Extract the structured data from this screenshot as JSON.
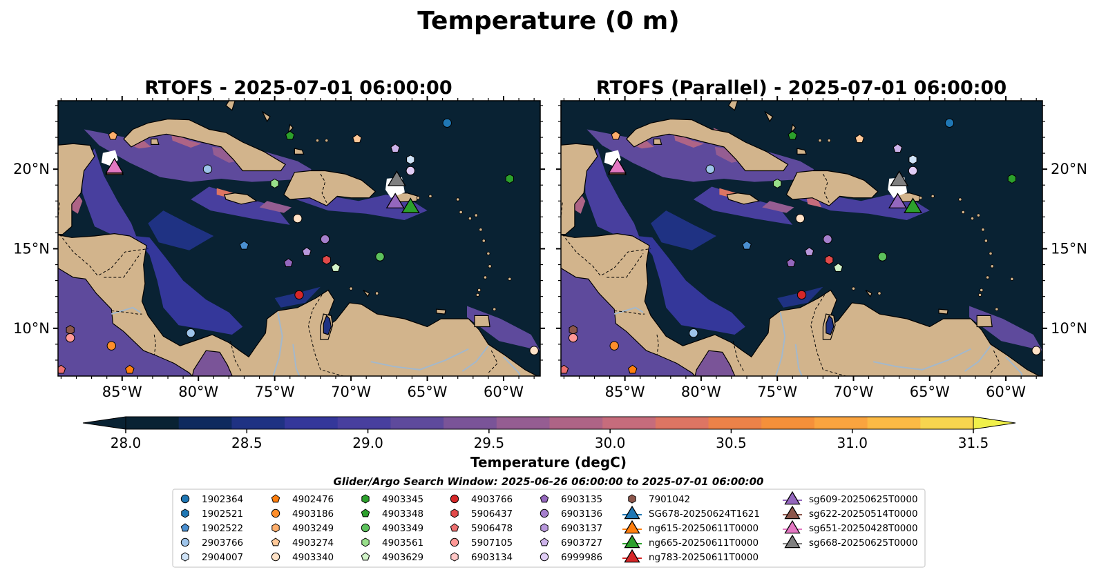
{
  "figure": {
    "suptitle": "Temperature (0 m)",
    "colorbar_label": "Temperature (degC)",
    "search_window": "Glider/Argo Search Window: 2025-06-26 06:00:00 to 2025-07-01 06:00:00"
  },
  "chart_data": [
    {
      "type": "heatmap",
      "title": "RTOFS - 2025-07-01 06:00:00",
      "x_ticks": [
        "85°W",
        "80°W",
        "75°W",
        "70°W",
        "65°W",
        "60°W"
      ],
      "y_ticks": [
        "20°N",
        "15°N",
        "10°N"
      ],
      "y_tick_side": "left"
    },
    {
      "type": "heatmap",
      "title": "RTOFS (Parallel) - 2025-07-01 06:00:00",
      "x_ticks": [
        "85°W",
        "80°W",
        "75°W",
        "70°W",
        "65°W",
        "60°W"
      ],
      "y_ticks": [
        "20°N",
        "15°N",
        "10°N"
      ],
      "y_tick_side": "right"
    }
  ],
  "colorbar": {
    "range": [
      28.0,
      31.5
    ],
    "ticks": [
      "28.0",
      "28.5",
      "29.0",
      "29.5",
      "30.0",
      "30.5",
      "31.0",
      "31.5"
    ],
    "extend": "both",
    "colors": [
      "#092233",
      "#0f2a5e",
      "#1f3283",
      "#34379a",
      "#483f9e",
      "#5e4a9c",
      "#7a5498",
      "#955d92",
      "#ae6486",
      "#c66c7c",
      "#dd7563",
      "#ec8249",
      "#f5903a",
      "#faa43f",
      "#fcba45",
      "#f7d54f"
    ]
  },
  "legend": {
    "columns": [
      [
        {
          "label": "1902364",
          "marker": "circle",
          "color": "#1f77b4"
        },
        {
          "label": "1902521",
          "marker": "hexagon",
          "color": "#1f77b4"
        },
        {
          "label": "1902522",
          "marker": "pentagon",
          "color": "#4a8fd0"
        },
        {
          "label": "2903766",
          "marker": "circle",
          "color": "#9ec4ea"
        },
        {
          "label": "2904007",
          "marker": "hexagon",
          "color": "#cfe3f7"
        }
      ],
      [
        {
          "label": "4902476",
          "marker": "pentagon",
          "color": "#ff7f0e"
        },
        {
          "label": "4903186",
          "marker": "circle",
          "color": "#ff8e2a"
        },
        {
          "label": "4903249",
          "marker": "hexagon",
          "color": "#ffae6b"
        },
        {
          "label": "4903274",
          "marker": "pentagon",
          "color": "#ffc898"
        },
        {
          "label": "4903340",
          "marker": "circle",
          "color": "#ffe2c7"
        }
      ],
      [
        {
          "label": "4903345",
          "marker": "hexagon",
          "color": "#2ca02c"
        },
        {
          "label": "4903348",
          "marker": "pentagon",
          "color": "#2ca02c"
        },
        {
          "label": "4903349",
          "marker": "circle",
          "color": "#5cc15c"
        },
        {
          "label": "4903561",
          "marker": "hexagon",
          "color": "#98df8a"
        },
        {
          "label": "4903629",
          "marker": "pentagon",
          "color": "#d2f4c9"
        }
      ],
      [
        {
          "label": "4903766",
          "marker": "circle",
          "color": "#d62728"
        },
        {
          "label": "5906437",
          "marker": "hexagon",
          "color": "#e24a4a"
        },
        {
          "label": "5906478",
          "marker": "pentagon",
          "color": "#ec7070"
        },
        {
          "label": "5907105",
          "marker": "circle",
          "color": "#ff9896"
        },
        {
          "label": "6903134",
          "marker": "hexagon",
          "color": "#ffc6c5"
        }
      ],
      [
        {
          "label": "6903135",
          "marker": "pentagon",
          "color": "#9467bd"
        },
        {
          "label": "6903136",
          "marker": "circle",
          "color": "#a57fcc"
        },
        {
          "label": "6903137",
          "marker": "hexagon",
          "color": "#b898dc"
        },
        {
          "label": "6903727",
          "marker": "pentagon",
          "color": "#cdb3ea"
        },
        {
          "label": "6999986",
          "marker": "circle",
          "color": "#e0cdf6"
        }
      ],
      [
        {
          "label": "7901042",
          "marker": "hexagon",
          "color": "#8c564b"
        },
        {
          "label": "SG678-20250624T1621",
          "marker": "triangle",
          "color": "#1f77b4"
        },
        {
          "label": "ng615-20250611T0000",
          "marker": "triangle",
          "color": "#ff7f0e"
        },
        {
          "label": "ng665-20250611T0000",
          "marker": "triangle",
          "color": "#2ca02c"
        },
        {
          "label": "ng783-20250611T0000",
          "marker": "triangle",
          "color": "#d62728"
        }
      ],
      [
        {
          "label": "sg609-20250625T0000",
          "marker": "triangle",
          "color": "#9467bd"
        },
        {
          "label": "sg622-20250514T0000",
          "marker": "triangle",
          "color": "#8c564b"
        },
        {
          "label": "sg651-20250428T0000",
          "marker": "triangle",
          "color": "#e377c2"
        },
        {
          "label": "sg668-20250625T0000",
          "marker": "triangle",
          "color": "#7f7f7f"
        }
      ]
    ]
  },
  "map_markers": [
    {
      "lon": -63.7,
      "lat": 22.9,
      "marker": "circle",
      "color": "#1f77b4"
    },
    {
      "lon": -79.4,
      "lat": 20.0,
      "marker": "circle",
      "color": "#9ec4ea"
    },
    {
      "lon": -77.0,
      "lat": 15.2,
      "marker": "pentagon",
      "color": "#4a8fd0"
    },
    {
      "lon": -80.5,
      "lat": 9.7,
      "marker": "circle",
      "color": "#9ec4ea"
    },
    {
      "lon": -85.6,
      "lat": 22.1,
      "marker": "pentagon",
      "color": "#ffae6b"
    },
    {
      "lon": -69.6,
      "lat": 21.9,
      "marker": "pentagon",
      "color": "#ffc898"
    },
    {
      "lon": -73.5,
      "lat": 16.9,
      "marker": "circle",
      "color": "#ffe2c7"
    },
    {
      "lon": -85.7,
      "lat": 8.9,
      "marker": "circle",
      "color": "#ff8e2a"
    },
    {
      "lon": -84.5,
      "lat": 7.4,
      "marker": "pentagon",
      "color": "#ff7f0e"
    },
    {
      "lon": -74.0,
      "lat": 22.1,
      "marker": "pentagon",
      "color": "#2ca02c"
    },
    {
      "lon": -75.0,
      "lat": 19.1,
      "marker": "hexagon",
      "color": "#98df8a"
    },
    {
      "lon": -59.6,
      "lat": 19.4,
      "marker": "hexagon",
      "color": "#2ca02c"
    },
    {
      "lon": -68.1,
      "lat": 14.5,
      "marker": "circle",
      "color": "#5cc15c"
    },
    {
      "lon": -71.0,
      "lat": 13.8,
      "marker": "pentagon",
      "color": "#d2f4c9"
    },
    {
      "lon": -73.4,
      "lat": 12.1,
      "marker": "circle",
      "color": "#d62728"
    },
    {
      "lon": -71.6,
      "lat": 14.3,
      "marker": "hexagon",
      "color": "#e24a4a"
    },
    {
      "lon": -72.9,
      "lat": 14.8,
      "marker": "pentagon",
      "color": "#b898dc"
    },
    {
      "lon": -71.7,
      "lat": 15.6,
      "marker": "circle",
      "color": "#a57fcc"
    },
    {
      "lon": -74.1,
      "lat": 14.1,
      "marker": "pentagon",
      "color": "#9467bd"
    },
    {
      "lon": -67.1,
      "lat": 21.3,
      "marker": "pentagon",
      "color": "#cdb3ea"
    },
    {
      "lon": -66.1,
      "lat": 20.6,
      "marker": "hexagon",
      "color": "#cfe3f7"
    },
    {
      "lon": -66.1,
      "lat": 19.9,
      "marker": "circle",
      "color": "#e0cdf6"
    },
    {
      "lon": -88.4,
      "lat": 9.9,
      "marker": "hexagon",
      "color": "#8c564b"
    },
    {
      "lon": -88.4,
      "lat": 9.4,
      "marker": "circle",
      "color": "#ff9896"
    },
    {
      "lon": -89.0,
      "lat": 7.4,
      "marker": "pentagon",
      "color": "#ec7070"
    },
    {
      "lon": -58.0,
      "lat": 8.6,
      "marker": "circle",
      "color": "#ffe2c7"
    },
    {
      "lon": -85.5,
      "lat": 20.0,
      "marker": "triangle",
      "color": "#8c564b"
    },
    {
      "lon": -85.5,
      "lat": 20.1,
      "marker": "triangle",
      "color": "#e377c2"
    },
    {
      "lon": -67.0,
      "lat": 19.3,
      "marker": "triangle",
      "color": "#7f7f7f"
    },
    {
      "lon": -67.1,
      "lat": 17.9,
      "marker": "triangle",
      "color": "#9467bd"
    },
    {
      "lon": -66.1,
      "lat": 17.6,
      "marker": "triangle",
      "color": "#2ca02c"
    }
  ]
}
